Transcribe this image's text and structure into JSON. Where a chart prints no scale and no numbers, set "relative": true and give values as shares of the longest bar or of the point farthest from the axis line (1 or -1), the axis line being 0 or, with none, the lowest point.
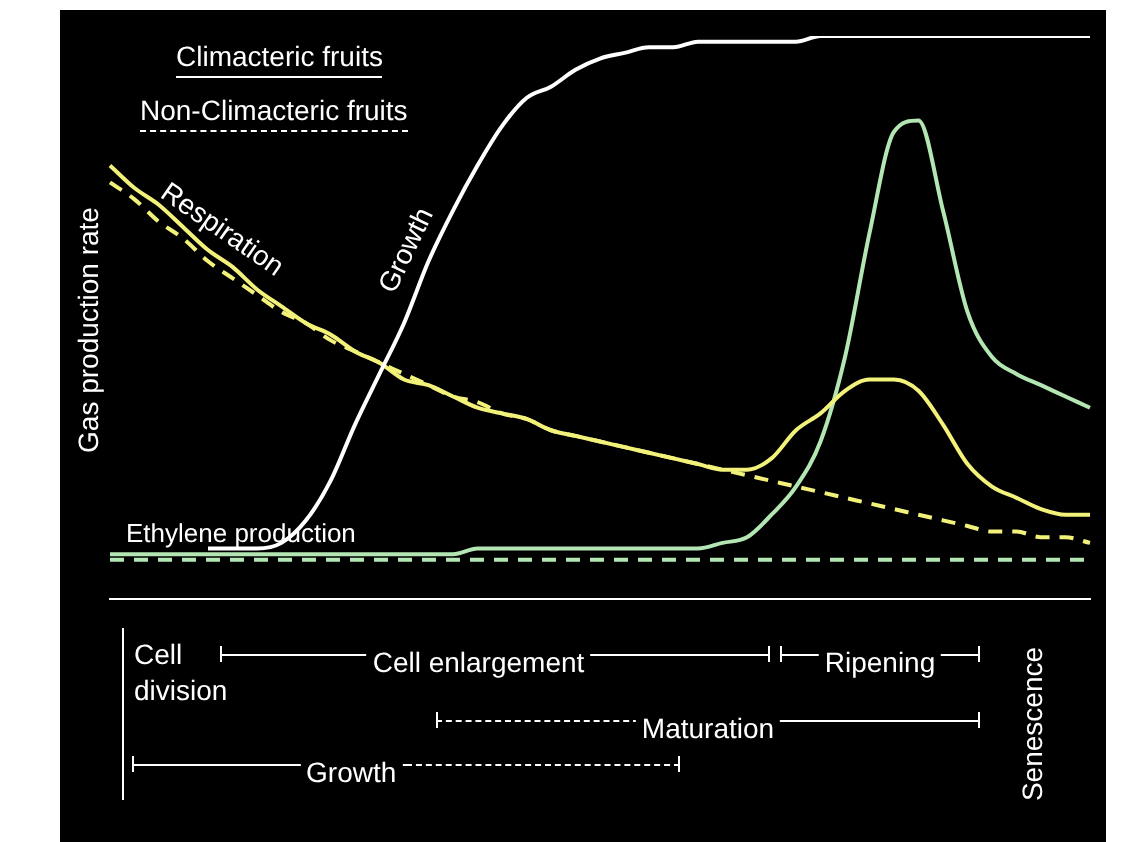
{
  "chart_data": {
    "type": "line",
    "relative": true,
    "ylabel": "Gas production rate",
    "grid": false,
    "marker": "none",
    "categories": [
      null,
      null,
      null,
      null,
      null,
      null,
      null,
      null,
      null,
      null,
      null,
      null,
      null,
      null,
      null,
      null,
      null,
      null,
      null,
      null,
      null,
      null,
      null,
      null,
      null,
      null,
      null,
      null,
      null,
      null,
      null,
      null,
      null,
      null,
      null,
      null,
      null,
      null,
      null,
      null,
      null
    ],
    "series": [
      {
        "name": "Growth",
        "color": "#ffffff",
        "line_style": "solid",
        "values": [
          null,
          null,
          null,
          null,
          0.09,
          0.09,
          0.09,
          0.1,
          0.14,
          0.21,
          0.31,
          0.4,
          0.49,
          0.6,
          0.69,
          0.77,
          0.84,
          0.89,
          0.91,
          0.94,
          0.96,
          0.97,
          0.98,
          0.98,
          0.99,
          0.99,
          0.99,
          0.99,
          0.99,
          1,
          1,
          1,
          1,
          1,
          1,
          1,
          1,
          1,
          1,
          1,
          1
        ]
      },
      {
        "name": "Respiration",
        "color": "#f2f27a",
        "line_style": "solid",
        "values": [
          0.77,
          0.73,
          0.7,
          0.66,
          0.62,
          0.59,
          0.55,
          0.52,
          0.49,
          0.47,
          0.44,
          0.42,
          0.39,
          0.38,
          0.36,
          0.34,
          0.33,
          0.32,
          0.3,
          0.29,
          0.28,
          0.27,
          0.26,
          0.25,
          0.24,
          0.23,
          0.23,
          0.25,
          0.3,
          0.33,
          0.37,
          0.39,
          0.39,
          0.37,
          0.31,
          0.24,
          0.2,
          0.18,
          0.16,
          0.15,
          0.15
        ]
      },
      {
        "color": "#f2f27a",
        "line_style": "dashed",
        "values": [
          0.74,
          0.71,
          0.67,
          0.64,
          0.6,
          0.57,
          0.54,
          0.51,
          0.49,
          0.46,
          0.44,
          0.42,
          0.4,
          0.38,
          0.36,
          0.35,
          0.33,
          0.32,
          0.3,
          0.29,
          0.28,
          0.27,
          0.26,
          0.25,
          0.24,
          0.23,
          0.22,
          0.21,
          0.2,
          0.19,
          0.18,
          0.17,
          0.16,
          0.15,
          0.14,
          0.13,
          0.12,
          0.12,
          0.11,
          0.11,
          0.1
        ]
      },
      {
        "name": "Ethylene production",
        "color": "#b4e6b4",
        "line_style": "solid",
        "values": [
          0.08,
          0.08,
          0.08,
          0.08,
          0.08,
          0.08,
          0.08,
          0.08,
          0.08,
          0.08,
          0.08,
          0.08,
          0.08,
          0.08,
          0.08,
          0.09,
          0.09,
          0.09,
          0.09,
          0.09,
          0.09,
          0.09,
          0.09,
          0.09,
          0.09,
          0.1,
          0.11,
          0.15,
          0.2,
          0.28,
          0.43,
          0.65,
          0.83,
          0.85,
          0.69,
          0.51,
          0.43,
          0.4,
          0.38,
          0.36,
          0.34
        ]
      },
      {
        "color": "#b4e6b4",
        "line_style": "dashed",
        "values": [
          0.07,
          0.07,
          0.07,
          0.07,
          0.07,
          0.07,
          0.07,
          0.07,
          0.07,
          0.07,
          0.07,
          0.07,
          0.07,
          0.07,
          0.07,
          0.07,
          0.07,
          0.07,
          0.07,
          0.07,
          0.07,
          0.07,
          0.07,
          0.07,
          0.07,
          0.07,
          0.07,
          0.07,
          0.07,
          0.07,
          0.07,
          0.07,
          0.07,
          0.07,
          0.07,
          0.07,
          0.07,
          0.07,
          0.07,
          0.07,
          0.07
        ]
      }
    ],
    "annotations": [
      "Climacteric fruits",
      "Non-Climacteric fruits",
      "Cell division",
      "Cell enlargement",
      "Ripening",
      "Maturation",
      "Growth",
      "Senescence"
    ]
  }
}
